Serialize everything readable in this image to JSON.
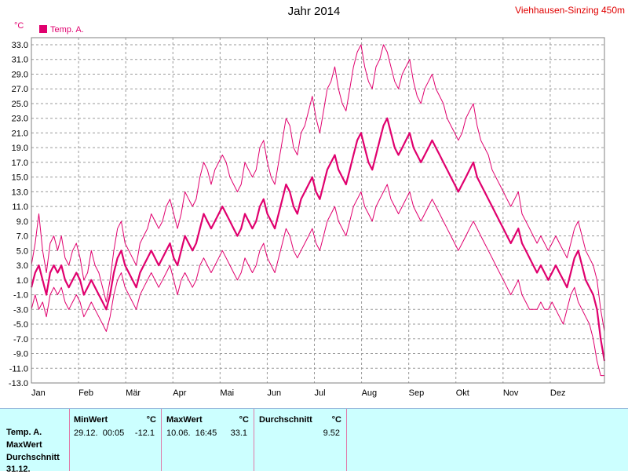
{
  "header": {
    "title": "Jahr 2014",
    "station": "Viehhausen-Sinzing 450m"
  },
  "chart_data": {
    "type": "line",
    "title": "Jahr 2014",
    "ylabel": "°C",
    "ylim": [
      -13,
      33
    ],
    "yticks": [
      "33.0",
      "31.0",
      "29.0",
      "27.0",
      "25.0",
      "23.0",
      "21.0",
      "19.0",
      "17.0",
      "15.0",
      "13.0",
      "11.0",
      "9.0",
      "7.0",
      "5.0",
      "3.0",
      "1.0",
      "-1.0",
      "-3.0",
      "-5.0",
      "-7.0",
      "-9.0",
      "-11.0",
      "-13.0"
    ],
    "xticks": [
      "Jan",
      "Feb",
      "Mär",
      "Apr",
      "Mai",
      "Jun",
      "Jul",
      "Aug",
      "Sep",
      "Okt",
      "Nov",
      "Dez"
    ],
    "grid": true,
    "legend": "top-left",
    "series": [
      {
        "name": "Temp. A.",
        "role": "mean",
        "color": "#e0006e",
        "values": [
          0,
          2,
          3,
          1,
          -1,
          2,
          3,
          2,
          3,
          1,
          0,
          1,
          2,
          1,
          -1,
          0,
          1,
          0,
          -1,
          -2,
          -3,
          -1,
          2,
          4,
          5,
          3,
          2,
          1,
          0,
          2,
          3,
          4,
          5,
          4,
          3,
          4,
          5,
          6,
          4,
          3,
          5,
          7,
          6,
          5,
          6,
          8,
          10,
          9,
          8,
          9,
          10,
          11,
          10,
          9,
          8,
          7,
          8,
          10,
          9,
          8,
          9,
          11,
          12,
          10,
          9,
          8,
          10,
          12,
          14,
          13,
          11,
          10,
          12,
          13,
          14,
          15,
          13,
          12,
          14,
          16,
          17,
          18,
          16,
          15,
          14,
          16,
          18,
          20,
          21,
          19,
          17,
          16,
          18,
          20,
          22,
          23,
          21,
          19,
          18,
          19,
          20,
          21,
          19,
          18,
          17,
          18,
          19,
          20,
          19,
          18,
          17,
          16,
          15,
          14,
          13,
          14,
          15,
          16,
          17,
          15,
          14,
          13,
          12,
          11,
          10,
          9,
          8,
          7,
          6,
          7,
          8,
          6,
          5,
          4,
          3,
          2,
          3,
          2,
          1,
          2,
          3,
          2,
          1,
          0,
          2,
          4,
          5,
          3,
          1,
          0,
          -1,
          -3,
          -7,
          -10
        ]
      },
      {
        "name": "MaxWert",
        "role": "max",
        "color": "#e0006e",
        "values": [
          3,
          6,
          10,
          5,
          2,
          6,
          7,
          5,
          7,
          4,
          3,
          5,
          6,
          4,
          1,
          2,
          5,
          3,
          2,
          0,
          -2,
          1,
          5,
          8,
          9,
          6,
          5,
          4,
          3,
          6,
          7,
          8,
          10,
          9,
          8,
          9,
          11,
          12,
          10,
          8,
          10,
          13,
          12,
          11,
          12,
          15,
          17,
          16,
          14,
          16,
          17,
          18,
          17,
          15,
          14,
          13,
          14,
          17,
          16,
          15,
          16,
          19,
          20,
          17,
          15,
          14,
          17,
          20,
          23,
          22,
          19,
          18,
          21,
          22,
          24,
          26,
          23,
          21,
          24,
          27,
          28,
          30,
          27,
          25,
          24,
          27,
          30,
          32,
          33,
          30,
          28,
          27,
          30,
          31,
          33,
          32,
          30,
          28,
          27,
          29,
          30,
          31,
          28,
          26,
          25,
          27,
          28,
          29,
          27,
          26,
          25,
          23,
          22,
          21,
          20,
          21,
          23,
          24,
          25,
          22,
          20,
          19,
          18,
          16,
          15,
          14,
          13,
          12,
          11,
          12,
          13,
          10,
          9,
          8,
          7,
          6,
          7,
          6,
          5,
          6,
          7,
          6,
          5,
          4,
          6,
          8,
          9,
          7,
          5,
          4,
          3,
          1,
          -3,
          -6
        ]
      },
      {
        "name": "MinWert",
        "role": "min",
        "color": "#e0006e",
        "values": [
          -3,
          -1,
          -3,
          -2,
          -4,
          -1,
          0,
          -1,
          0,
          -2,
          -3,
          -2,
          -1,
          -2,
          -4,
          -3,
          -2,
          -3,
          -4,
          -5,
          -6,
          -4,
          -1,
          1,
          2,
          0,
          -1,
          -2,
          -3,
          -1,
          0,
          1,
          2,
          1,
          0,
          1,
          2,
          3,
          1,
          -1,
          1,
          2,
          1,
          0,
          1,
          3,
          4,
          3,
          2,
          3,
          4,
          5,
          4,
          3,
          2,
          1,
          2,
          4,
          3,
          2,
          3,
          5,
          6,
          4,
          3,
          2,
          4,
          6,
          8,
          7,
          5,
          4,
          5,
          6,
          7,
          8,
          6,
          5,
          7,
          9,
          10,
          11,
          9,
          8,
          7,
          9,
          11,
          12,
          13,
          11,
          10,
          9,
          11,
          12,
          13,
          14,
          12,
          11,
          10,
          11,
          12,
          13,
          11,
          10,
          9,
          10,
          11,
          12,
          11,
          10,
          9,
          8,
          7,
          6,
          5,
          6,
          7,
          8,
          9,
          8,
          7,
          6,
          5,
          4,
          3,
          2,
          1,
          0,
          -1,
          0,
          1,
          -1,
          -2,
          -3,
          -3,
          -3,
          -2,
          -3,
          -3,
          -2,
          -3,
          -4,
          -5,
          -3,
          -1,
          0,
          -2,
          -3,
          -4,
          -5,
          -7,
          -10,
          -12,
          -12
        ]
      }
    ]
  },
  "legend": {
    "label": "Temp. A."
  },
  "panel": {
    "row_labels": [
      "Temp. A.",
      "MaxWert",
      "Durchschnitt",
      "31.12."
    ],
    "min": {
      "head": "MinWert",
      "unit": "°C",
      "time": "29.12.  00:05",
      "value": "-12.1"
    },
    "max": {
      "head": "MaxWert",
      "unit": "°C",
      "time": "10.06.  16:45",
      "value": "33.1"
    },
    "avg": {
      "head": "Durchschnitt",
      "unit": "°C",
      "value": "9.52"
    }
  }
}
